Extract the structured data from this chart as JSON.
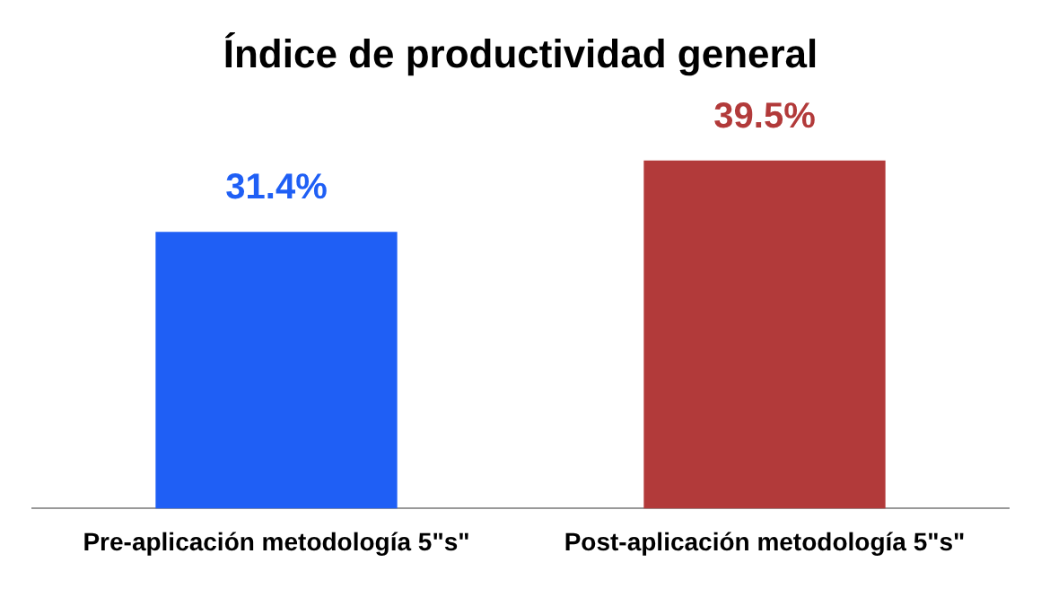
{
  "chart_data": {
    "type": "bar",
    "title": "Índice de productividad general",
    "categories": [
      "Pre-aplicación metodología 5\"s\"",
      "Post-aplicación metodología 5\"s\""
    ],
    "values": [
      31.4,
      39.5
    ],
    "colors": [
      "#1f5ff5",
      "#b23a3a"
    ],
    "value_labels": [
      "31.4%",
      "39.5%"
    ],
    "grid": false,
    "legend": false
  }
}
